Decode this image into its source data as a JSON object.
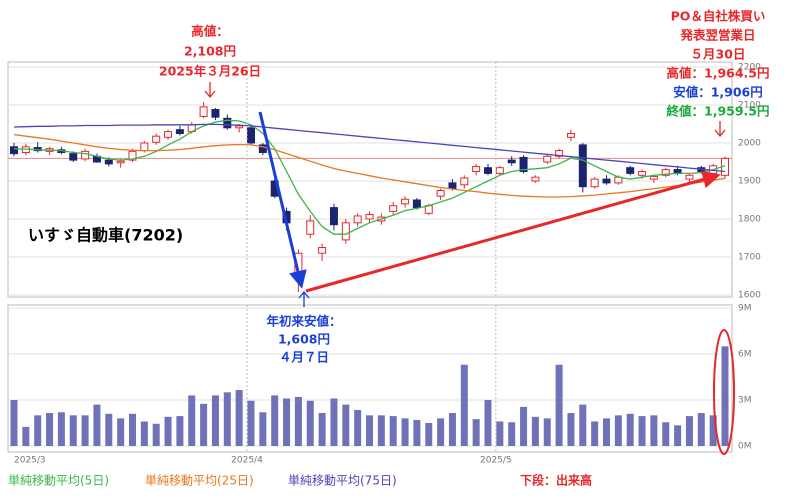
{
  "chart_data": [
    {
      "type": "candlestick",
      "title": "いすゞ自動車(7202)",
      "open": [
        1990,
        1975,
        1988,
        1978,
        1982,
        1972,
        1958,
        1965,
        1955,
        1948,
        1955,
        1980,
        2002,
        2015,
        2035,
        2030,
        2070,
        2088,
        2065,
        2040,
        2040,
        1995,
        1900,
        1820,
        1660,
        1760,
        1710,
        1830,
        1745,
        1790,
        1800,
        1795,
        1820,
        1840,
        1850,
        1815,
        1860,
        1895,
        1890,
        1925,
        1935,
        1920,
        1955,
        1962,
        1900,
        1950,
        1965,
        2015,
        1995,
        1885,
        1905,
        1895,
        1935,
        1915,
        1905,
        1915,
        1930,
        1905,
        1935,
        1920,
        1915
      ],
      "high": [
        2000,
        1998,
        2002,
        1990,
        1990,
        1978,
        1985,
        1972,
        1962,
        1958,
        1985,
        2005,
        2025,
        2035,
        2045,
        2055,
        2108,
        2092,
        2075,
        2050,
        2048,
        2000,
        1905,
        1830,
        1720,
        1810,
        1735,
        1840,
        1800,
        1815,
        1820,
        1815,
        1845,
        1860,
        1855,
        1840,
        1880,
        1905,
        1915,
        1945,
        1945,
        1940,
        1965,
        1968,
        1915,
        1972,
        1985,
        2035,
        2000,
        1910,
        1915,
        1915,
        1940,
        1930,
        1915,
        1935,
        1940,
        1920,
        1940,
        1945,
        1964.5
      ],
      "low": [
        1965,
        1968,
        1975,
        1968,
        1970,
        1950,
        1952,
        1948,
        1938,
        1935,
        1950,
        1975,
        1995,
        2008,
        2020,
        2025,
        2065,
        2060,
        2035,
        2028,
        1995,
        1968,
        1855,
        1770,
        1608,
        1750,
        1690,
        1770,
        1735,
        1780,
        1790,
        1785,
        1810,
        1830,
        1825,
        1810,
        1850,
        1875,
        1880,
        1915,
        1915,
        1915,
        1940,
        1920,
        1895,
        1945,
        1960,
        2005,
        1870,
        1880,
        1890,
        1890,
        1915,
        1905,
        1895,
        1910,
        1915,
        1895,
        1920,
        1915,
        1906
      ],
      "close": [
        1972,
        1990,
        1980,
        1985,
        1975,
        1955,
        1978,
        1950,
        1945,
        1952,
        1978,
        2000,
        2018,
        2030,
        2025,
        2048,
        2095,
        2068,
        2040,
        2045,
        2000,
        1975,
        1860,
        1790,
        1710,
        1795,
        1725,
        1785,
        1790,
        1808,
        1812,
        1805,
        1835,
        1852,
        1830,
        1835,
        1875,
        1880,
        1908,
        1938,
        1920,
        1935,
        1948,
        1925,
        1910,
        1965,
        1980,
        2025,
        1885,
        1905,
        1895,
        1910,
        1920,
        1925,
        1912,
        1930,
        1920,
        1915,
        1925,
        1940,
        1959.5
      ],
      "up_color": "#e8272a",
      "down_color": "#1c2470",
      "last_close_line_color": "#e88a8a",
      "series": [
        {
          "name": "単純移動平均(5日)",
          "color": "#3bb54a",
          "values": [
            1985,
            1984,
            1982,
            1981,
            1980,
            1975,
            1972,
            1965,
            1958,
            1955,
            1958,
            1965,
            1978,
            1995,
            2010,
            2030,
            2045,
            2055,
            2060,
            2058,
            2048,
            2025,
            1985,
            1925,
            1865,
            1820,
            1780,
            1760,
            1760,
            1775,
            1790,
            1800,
            1810,
            1822,
            1828,
            1835,
            1845,
            1855,
            1870,
            1885,
            1900,
            1915,
            1925,
            1930,
            1932,
            1935,
            1945,
            1960,
            1955,
            1940,
            1925,
            1910,
            1905,
            1910,
            1915,
            1918,
            1920,
            1920,
            1922,
            1930,
            1940
          ]
        },
        {
          "name": "単純移動平均(25日)",
          "color": "#e8781e",
          "values": [
            2022,
            2018,
            2014,
            2010,
            2005,
            2000,
            1995,
            1990,
            1986,
            1983,
            1981,
            1980,
            1980,
            1981,
            1983,
            1986,
            1990,
            1993,
            1995,
            1996,
            1995,
            1990,
            1982,
            1972,
            1962,
            1952,
            1942,
            1933,
            1926,
            1920,
            1914,
            1908,
            1903,
            1898,
            1893,
            1888,
            1883,
            1879,
            1875,
            1872,
            1868,
            1865,
            1862,
            1860,
            1859,
            1858,
            1858,
            1859,
            1861,
            1863,
            1866,
            1869,
            1872,
            1876,
            1880,
            1884,
            1888,
            1892,
            1897,
            1902,
            1907
          ]
        },
        {
          "name": "単純移動平均(75日)",
          "color": "#4a46b8",
          "values": [
            2042,
            2043,
            2044,
            2044,
            2045,
            2045,
            2046,
            2046,
            2046,
            2047,
            2047,
            2047,
            2048,
            2048,
            2048,
            2048,
            2049,
            2049,
            2048,
            2047,
            2045,
            2042,
            2039,
            2036,
            2033,
            2030,
            2027,
            2024,
            2021,
            2018,
            2015,
            2012,
            2009,
            2006,
            2003,
            2000,
            1997,
            1994,
            1991,
            1988,
            1985,
            1982,
            1979,
            1976,
            1973,
            1970,
            1967,
            1964,
            1961,
            1958,
            1955,
            1952,
            1949,
            1946,
            1943,
            1940,
            1937,
            1934,
            1931,
            1928,
            1925
          ]
        }
      ],
      "ylim": [
        1600,
        2200
      ],
      "yticks": [
        1600,
        1700,
        1800,
        1900,
        2000,
        2100,
        2200
      ],
      "grid": true,
      "annotations": [
        {
          "lines": [
            {
              "text": "高値：",
              "color": "#e8272a"
            },
            {
              "text": "2,108円",
              "color": "#e8272a"
            },
            {
              "text": "2025年３月26日",
              "color": "#e8272a"
            }
          ]
        },
        {
          "lines": [
            {
              "text": "年初来安値：",
              "color": "#1a3fd6"
            },
            {
              "text": "1,608円",
              "color": "#1a3fd6"
            },
            {
              "text": "４月７日",
              "color": "#1a3fd6"
            }
          ]
        },
        {
          "lines": [
            {
              "text": "PO＆自社株買い",
              "color": "#e8272a"
            },
            {
              "text": "発表翌営業日",
              "color": "#e8272a"
            },
            {
              "text": "５月30日",
              "color": "#e8272a"
            },
            {
              "text": "高値：1,964.5円",
              "color": "#e8272a"
            },
            {
              "text": "安値：1,906円",
              "color": "#1a3fd6"
            },
            {
              "text": "終値：1,959.5円",
              "color": "#1aa83a"
            }
          ]
        }
      ]
    },
    {
      "type": "bar",
      "title": "下段：出来高",
      "categories": [
        "2025/3",
        null,
        null,
        null,
        null,
        null,
        null,
        null,
        null,
        null,
        null,
        null,
        null,
        null,
        null,
        null,
        null,
        null,
        null,
        null,
        "2025/4",
        null,
        null,
        null,
        null,
        null,
        null,
        null,
        null,
        null,
        null,
        null,
        null,
        null,
        null,
        null,
        null,
        null,
        null,
        null,
        null,
        "2025/5",
        null,
        null,
        null,
        null,
        null,
        null,
        null,
        null,
        null,
        null,
        null,
        null,
        null,
        null,
        null,
        null,
        null,
        null,
        null
      ],
      "values": [
        3.0,
        1.25,
        2.0,
        2.15,
        2.2,
        2.0,
        2.0,
        2.7,
        2.1,
        1.8,
        2.1,
        1.6,
        1.45,
        1.9,
        1.95,
        3.3,
        2.75,
        3.3,
        3.5,
        3.65,
        2.95,
        2.2,
        3.3,
        3.1,
        3.2,
        2.95,
        2.15,
        3.1,
        2.7,
        2.35,
        2.0,
        2.0,
        1.95,
        1.8,
        1.7,
        1.5,
        1.8,
        2.15,
        5.3,
        1.75,
        3.0,
        1.6,
        1.55,
        2.55,
        1.9,
        1.8,
        5.3,
        2.15,
        2.7,
        1.6,
        1.8,
        2.0,
        2.1,
        1.95,
        2.0,
        1.55,
        1.35,
        1.95,
        2.15,
        2.0,
        6.5
      ],
      "color": "#6f72b8",
      "ylim": [
        0,
        9
      ],
      "yticks": [
        {
          "value": 0,
          "label": "0M"
        },
        {
          "value": 3,
          "label": "3M"
        },
        {
          "value": 6,
          "label": "6M"
        },
        {
          "value": 9,
          "label": "9M"
        }
      ],
      "grid": true
    }
  ]
}
